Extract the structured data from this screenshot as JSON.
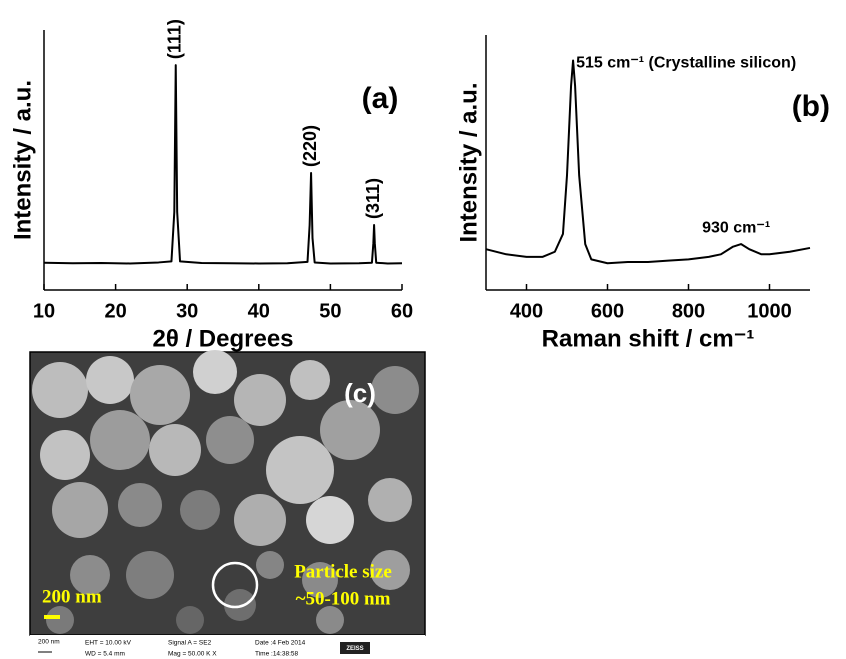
{
  "chart_data": [
    {
      "type": "line",
      "x_label": "2θ / Degrees",
      "y_label": "Intensity / a.u.",
      "panel_label": "(a)",
      "x": [
        10,
        14,
        18,
        22,
        26,
        27.8,
        28.2,
        28.4,
        28.6,
        29,
        32,
        36,
        40,
        44,
        46.8,
        47.1,
        47.3,
        47.5,
        47.8,
        50,
        54,
        55.8,
        56.0,
        56.1,
        56.2,
        56.4,
        58,
        60
      ],
      "values": [
        10.5,
        10.3,
        10.4,
        10.2,
        10.6,
        11,
        30,
        86.5,
        30,
        11,
        10.4,
        10.3,
        10.2,
        10.3,
        10.8,
        25,
        45,
        20,
        10.6,
        10.2,
        10.3,
        10.5,
        18,
        25,
        18,
        10.5,
        10.2,
        10.3
      ],
      "color": "#000000",
      "xlim": [
        10,
        60
      ],
      "xticks": [
        10,
        20,
        30,
        40,
        50,
        60
      ],
      "ylim": [
        0,
        100
      ],
      "annotations": [
        {
          "text": "(111)",
          "x": 28.4
        },
        {
          "text": "(220)",
          "x": 47.3
        },
        {
          "text": "(311)",
          "x": 56.1
        }
      ]
    },
    {
      "type": "line",
      "x_label": "Raman shift / cm⁻¹",
      "y_label": "Intensity / a.u.",
      "panel_label": "(b)",
      "x": [
        300,
        350,
        400,
        440,
        470,
        490,
        500,
        510,
        515,
        520,
        530,
        545,
        560,
        600,
        650,
        700,
        750,
        800,
        850,
        880,
        910,
        930,
        950,
        980,
        1000,
        1050,
        1100
      ],
      "values": [
        16,
        14,
        13,
        13,
        15,
        22,
        45,
        80,
        90,
        80,
        45,
        18,
        12,
        10.5,
        11,
        11,
        11.5,
        12,
        13,
        14,
        17,
        18,
        16,
        14,
        14,
        15,
        16.5
      ],
      "color": "#000000",
      "xlim": [
        300,
        1100
      ],
      "xticks": [
        400,
        600,
        800,
        1000
      ],
      "ylim": [
        0,
        100
      ],
      "annotations": [
        {
          "text": "515 cm⁻¹ (Crystalline silicon)",
          "x": 515
        },
        {
          "text": "930 cm⁻¹",
          "x": 930
        }
      ]
    }
  ],
  "image": {
    "panel_label": "(c)",
    "scale_label": "200 nm",
    "note": [
      "Particle size",
      "~50-100 nm"
    ],
    "info_bar": [
      "200 nm",
      "EHT = 10.00 kV",
      "WD = 5.4 mm",
      "Signal A = SE2",
      "Mag = 50.00 K X",
      "Date :4 Feb 2014",
      "Time :14:38:58",
      "ZEISS"
    ]
  }
}
